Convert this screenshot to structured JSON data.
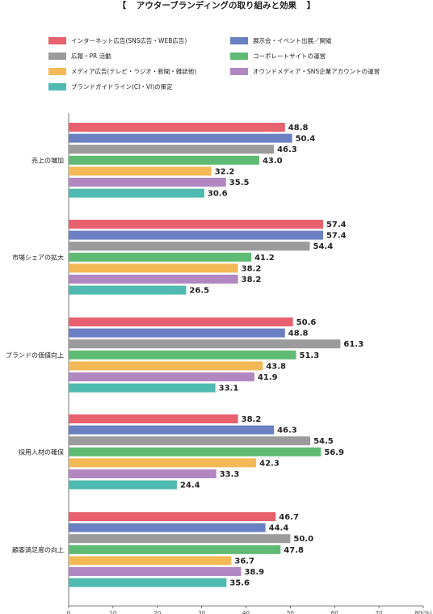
{
  "chart_data": {
    "type": "bar",
    "orientation": "horizontal",
    "title": "アウターブランディングの取り組みと効果",
    "title_bracket_left": "【",
    "title_bracket_right": "】",
    "categories": [
      "売上の増加",
      "市場シェアの拡大",
      "ブランドの価値向上",
      "採用人材の確保",
      "顧客満足度の向上"
    ],
    "series": [
      {
        "name": "インターネット広告(SNS広告・WEB広告)",
        "color": "#e8616f",
        "values": [
          48.8,
          57.4,
          50.6,
          38.2,
          46.7
        ]
      },
      {
        "name": "展示会・イベント出展／開催",
        "color": "#6a80c2",
        "values": [
          50.4,
          57.4,
          48.8,
          46.3,
          44.4
        ]
      },
      {
        "name": "広報・PR 活動",
        "color": "#9b9b9b",
        "values": [
          46.3,
          54.4,
          61.3,
          54.5,
          50.0
        ]
      },
      {
        "name": "コーポレートサイトの運営",
        "color": "#5fba73",
        "values": [
          43.0,
          41.2,
          51.3,
          56.9,
          47.8
        ]
      },
      {
        "name": "メディア広告(テレビ・ラジオ・新聞・雑誌他)",
        "color": "#f2b956",
        "values": [
          32.2,
          38.2,
          43.8,
          42.3,
          36.7
        ]
      },
      {
        "name": "オウンドメディア・SNS企業アカウントの運営",
        "color": "#b187c2",
        "values": [
          35.5,
          38.2,
          41.9,
          33.3,
          38.9
        ]
      },
      {
        "name": "ブランドガイドライン(CI・VI)の策定",
        "color": "#4fbab0",
        "values": [
          30.6,
          26.5,
          33.1,
          24.4,
          35.6
        ]
      }
    ],
    "xlim": [
      0,
      80
    ],
    "xticks": [
      "0",
      "10",
      "20",
      "30",
      "40",
      "50",
      "60",
      "70",
      "80(%)"
    ],
    "grid": false,
    "legend_position": "top"
  }
}
